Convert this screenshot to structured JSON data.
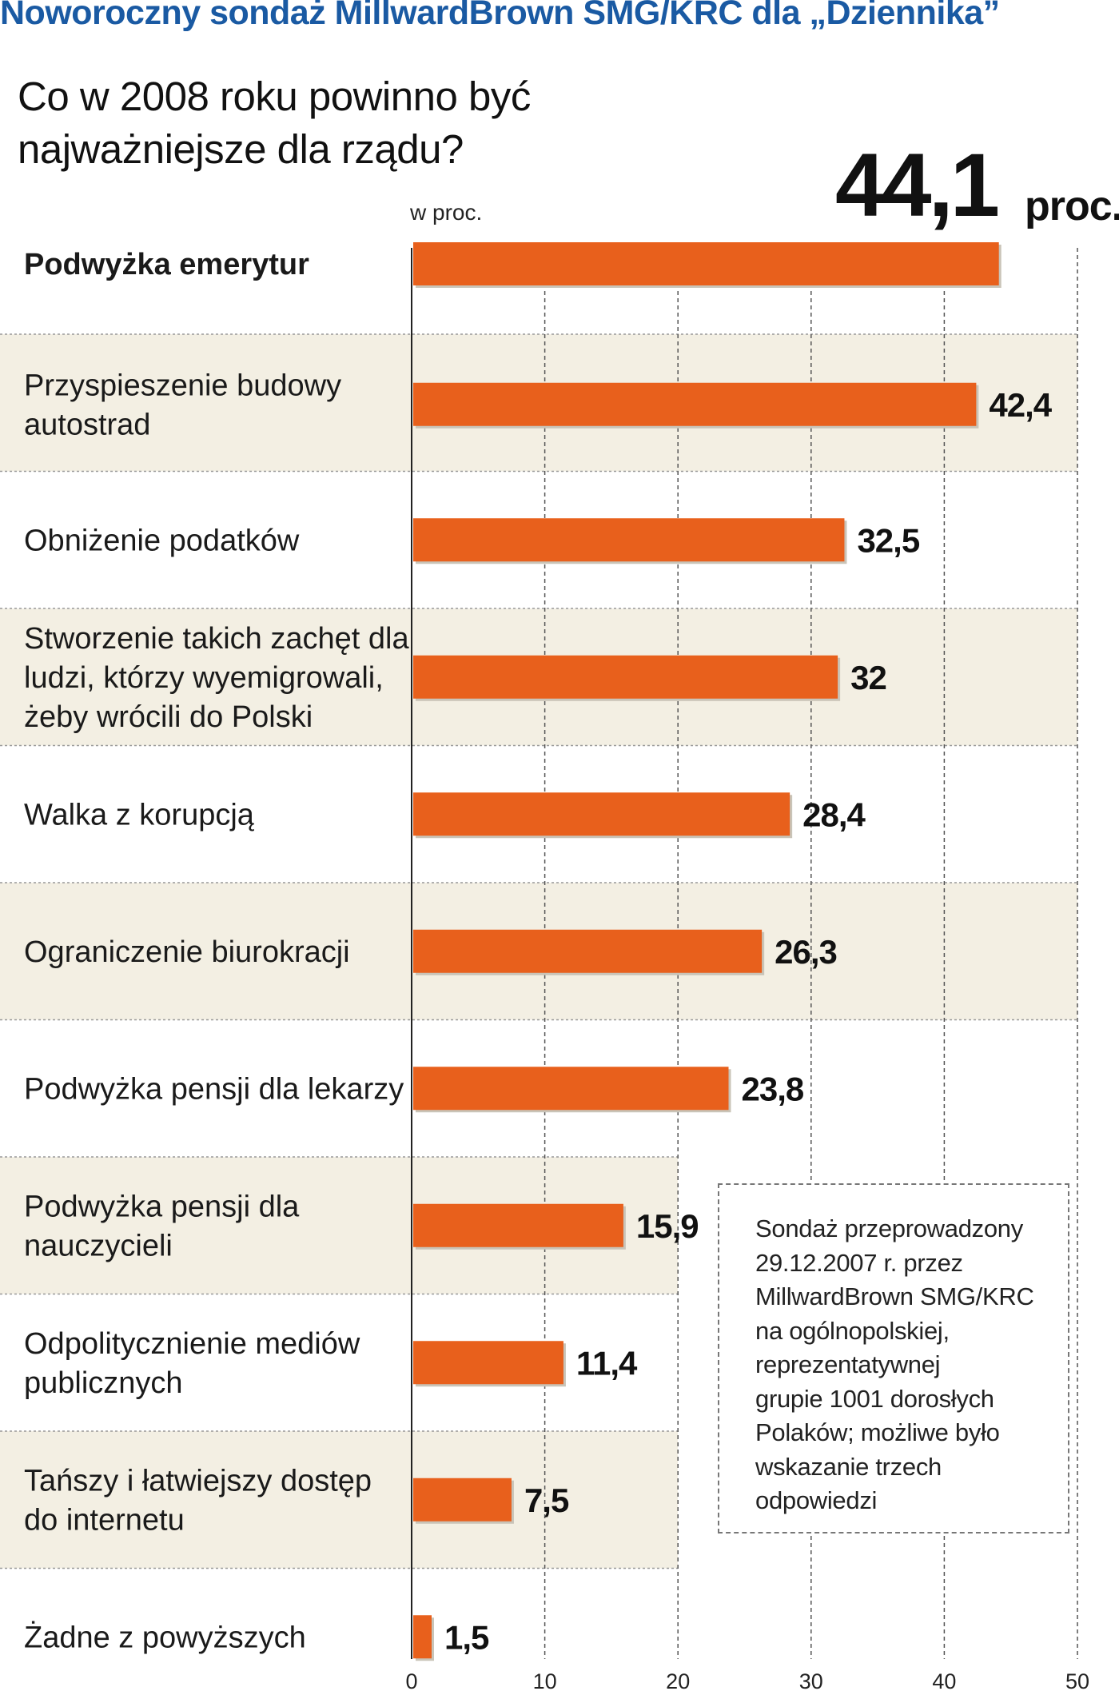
{
  "header": {
    "title": "Noworoczny sondaż MillwardBrown SMG/KRC dla „Dziennika”"
  },
  "chart_data": {
    "type": "bar",
    "orientation": "horizontal",
    "title": "Co w 2008 roku powinno być najważniejsze dla rządu?",
    "unit_label": "w proc.",
    "highlight": {
      "value": "44,1",
      "unit": "proc."
    },
    "categories": [
      "Podwyżka emerytur",
      "Przyspieszenie budowy autostrad",
      "Obniżenie podatków",
      "Stworzenie takich zachęt dla ludzi, którzy wyemigrowali, żeby wrócili do Polski",
      "Walka z korupcją",
      "Ograniczenie biurokracji",
      "Podwyżka pensji dla lekarzy",
      "Podwyżka pensji dla nauczycieli",
      "Odpolitycznienie mediów publicznych",
      "Tańszy i łatwiejszy dostęp do internetu",
      "Żadne z powyższych"
    ],
    "label_lines": [
      [
        "Podwyżka emerytur"
      ],
      [
        "Przyspieszenie budowy",
        "autostrad"
      ],
      [
        "Obniżenie podatków"
      ],
      [
        "Stworzenie takich zachęt dla",
        "ludzi, którzy wyemigrowali,",
        "żeby wrócili do Polski"
      ],
      [
        "Walka z korupcją"
      ],
      [
        "Ograniczenie biurokracji"
      ],
      [
        "Podwyżka pensji dla lekarzy"
      ],
      [
        "Podwyżka pensji dla",
        "nauczycieli"
      ],
      [
        "Odpolitycznienie mediów",
        "publicznych"
      ],
      [
        "Tańszy i łatwiejszy dostęp",
        "do internetu"
      ],
      [
        "Żadne z powyższych"
      ]
    ],
    "values": [
      44.1,
      42.4,
      32.5,
      32,
      28.4,
      26.3,
      23.8,
      15.9,
      11.4,
      7.5,
      1.5
    ],
    "value_labels": [
      "",
      "42,4",
      "32,5",
      "32",
      "28,4",
      "26,3",
      "23,8",
      "15,9",
      "11,4",
      "7,5",
      "1,5"
    ],
    "xlim": [
      0,
      50
    ],
    "xticks": [
      0,
      10,
      20,
      30,
      40,
      50
    ],
    "grid": true,
    "bar_color": "#e8601c",
    "band_color": "#f3efe3"
  },
  "note": {
    "lines": [
      "Sondaż przeprowadzony",
      "29.12.2007 r. przez",
      "MillwardBrown SMG/KRC",
      "na ogólnopolskiej,",
      "reprezentatywnej",
      "grupie 1001 dorosłych",
      "Polaków; możliwe było",
      "wskazanie trzech",
      "odpowiedzi"
    ]
  }
}
